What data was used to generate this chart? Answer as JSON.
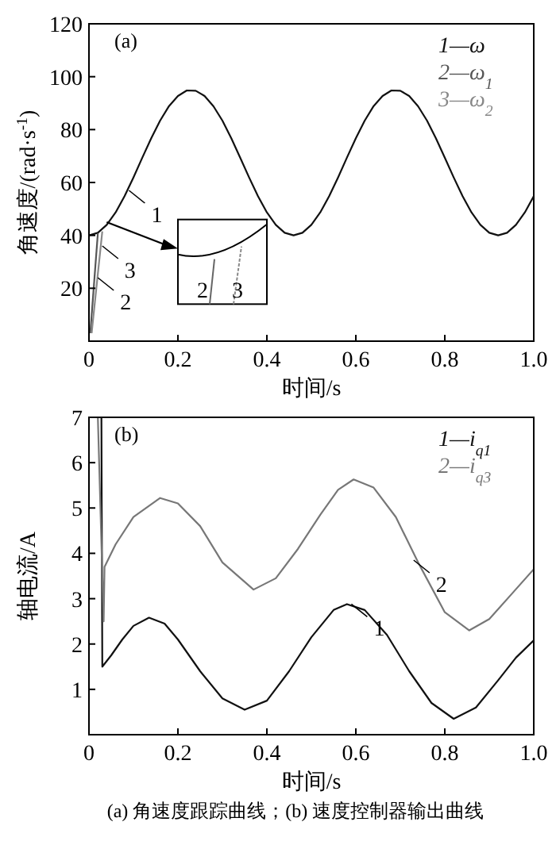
{
  "chart_data": [
    {
      "type": "line",
      "title": "(a)",
      "xlabel": "时间/s",
      "ylabel": "角速度/(rad·s$^{-1}$)",
      "xlim": [
        0,
        1
      ],
      "ylim": [
        0,
        120
      ],
      "xticks": [
        0,
        0.2,
        0.4,
        0.6,
        0.8,
        {
          "value": 1,
          "label": "1.0"
        }
      ],
      "yticks": [
        20,
        40,
        60,
        80,
        100,
        120
      ],
      "legend": "top right",
      "series": [
        {
          "name": "1—ω",
          "color": "#111111",
          "x": [
            0,
            0.02,
            0.04,
            0.06,
            0.08,
            0.1,
            0.12,
            0.14,
            0.16,
            0.18,
            0.2,
            0.22,
            0.24,
            0.26,
            0.28,
            0.3,
            0.32,
            0.34,
            0.36,
            0.38,
            0.4,
            0.42,
            0.44,
            0.46,
            0.48,
            0.5,
            0.52,
            0.54,
            0.56,
            0.58,
            0.6,
            0.62,
            0.64,
            0.66,
            0.68,
            0.7,
            0.72,
            0.74,
            0.76,
            0.78,
            0.8,
            0.82,
            0.84,
            0.86,
            0.88,
            0.9,
            0.92,
            0.94,
            0.96,
            0.98,
            1
          ],
          "values": [
            40,
            41,
            44,
            48.7,
            54.8,
            61.9,
            69.4,
            76.7,
            83.4,
            88.9,
            92.7,
            94.8,
            94.7,
            92.7,
            88.8,
            83.4,
            76.7,
            69.4,
            61.9,
            54.8,
            48.7,
            44,
            41,
            40,
            41,
            44,
            48.7,
            54.8,
            61.9,
            69.4,
            76.7,
            83.4,
            88.9,
            92.7,
            94.8,
            94.7,
            92.7,
            88.8,
            83.4,
            76.7,
            69.4,
            61.9,
            54.8,
            48.7,
            44,
            41,
            40,
            41,
            44,
            48.7,
            54.8
          ]
        },
        {
          "name": "2—ω$_{1}$",
          "color": "#555555",
          "x": [
            0.003,
            0.02
          ],
          "values": [
            3,
            40.8
          ]
        },
        {
          "name": "3—ω$_{2}$",
          "color": "#888888",
          "x": [
            0.006,
            0.03
          ],
          "values": [
            3,
            41.5
          ]
        }
      ],
      "annotations": [
        {
          "text": "1",
          "x": 0.09,
          "y": 57
        },
        {
          "text": "3",
          "x": 0.03,
          "y": 36
        },
        {
          "text": "2",
          "x": 0.02,
          "y": 24
        },
        "2",
        "3"
      ]
    },
    {
      "type": "line",
      "title": "(b)",
      "xlabel": "时间/s",
      "ylabel": "轴电流/A",
      "xlim": [
        0,
        1
      ],
      "ylim": [
        0,
        7
      ],
      "xticks": [
        0,
        0.2,
        0.4,
        0.6,
        0.8,
        {
          "value": 1,
          "label": "1.0"
        }
      ],
      "yticks": [
        1,
        2,
        3,
        4,
        5,
        6,
        7
      ],
      "legend": "top right",
      "series": [
        {
          "name": "1—i$_{q1}$",
          "color": "#111111",
          "x": [
            0.028,
            0.03,
            0.05,
            0.075,
            0.1,
            0.135,
            0.17,
            0.2,
            0.25,
            0.3,
            0.35,
            0.4,
            0.45,
            0.5,
            0.55,
            0.58,
            0.62,
            0.67,
            0.72,
            0.77,
            0.82,
            0.87,
            0.92,
            0.96,
            1
          ],
          "values": [
            7,
            1.5,
            1.75,
            2.1,
            2.4,
            2.58,
            2.45,
            2.1,
            1.4,
            0.8,
            0.55,
            0.75,
            1.4,
            2.15,
            2.75,
            2.88,
            2.75,
            2.2,
            1.4,
            0.7,
            0.35,
            0.6,
            1.2,
            1.7,
            2.08
          ]
        },
        {
          "name": "2—i$_{q3}$",
          "color": "#777777",
          "x": [
            0.02,
            0.033,
            0.035,
            0.06,
            0.1,
            0.16,
            0.2,
            0.25,
            0.3,
            0.37,
            0.42,
            0.47,
            0.52,
            0.56,
            0.595,
            0.64,
            0.69,
            0.74,
            0.8,
            0.855,
            0.9,
            0.95,
            1
          ],
          "values": [
            7,
            2.5,
            3.7,
            4.2,
            4.8,
            5.22,
            5.1,
            4.6,
            3.8,
            3.2,
            3.45,
            4.1,
            4.85,
            5.4,
            5.63,
            5.45,
            4.8,
            3.8,
            2.7,
            2.3,
            2.55,
            3.1,
            3.65
          ]
        }
      ],
      "annotations": [
        {
          "text": "1",
          "x": 0.59,
          "y": 2.88
        },
        {
          "text": "2",
          "x": 0.73,
          "y": 3.85
        },
        "(a) 角速度跟踪曲线；(b) 速度控制器输出曲线"
      ]
    }
  ]
}
